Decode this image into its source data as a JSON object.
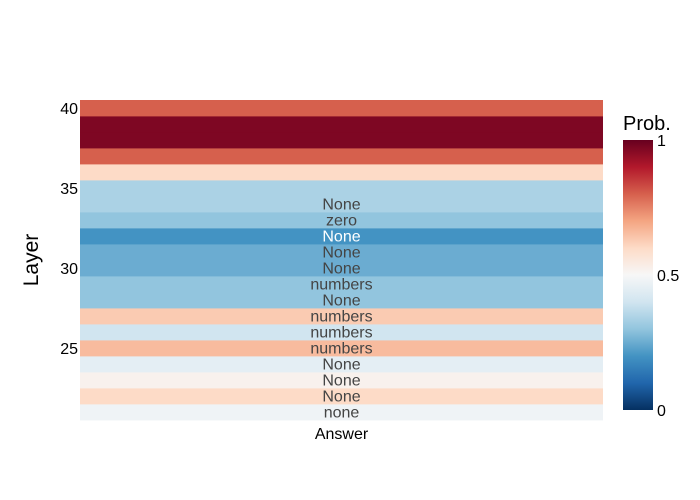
{
  "chart_data": {
    "type": "heatmap",
    "title": "",
    "xlabel": "Answer",
    "ylabel": "Layer",
    "x_categories": [
      "Answer"
    ],
    "y_range": [
      20.5,
      40.5
    ],
    "y_ticks": [
      "25",
      "30",
      "35",
      "40"
    ],
    "colorbar": {
      "title": "Prob.",
      "range": [
        0,
        1
      ],
      "ticks": [
        "0",
        "0.5",
        "1"
      ],
      "colorscale": "RdBu reversed",
      "stops": [
        "#053061",
        "#2166ac",
        "#4393c3",
        "#92c5de",
        "#d1e5f0",
        "#f7f7f7",
        "#fddbc7",
        "#f4a582",
        "#d6604d",
        "#b2182b",
        "#67001f"
      ]
    },
    "cells": [
      {
        "layer": 21,
        "value": 0.48,
        "label": "none"
      },
      {
        "layer": 22,
        "value": 0.6,
        "label": "None"
      },
      {
        "layer": 23,
        "value": 0.52,
        "label": "None"
      },
      {
        "layer": 24,
        "value": 0.45,
        "label": "None"
      },
      {
        "layer": 25,
        "value": 0.66,
        "label": "numbers"
      },
      {
        "layer": 26,
        "value": 0.4,
        "label": "numbers"
      },
      {
        "layer": 27,
        "value": 0.63,
        "label": "numbers"
      },
      {
        "layer": 28,
        "value": 0.3,
        "label": "None"
      },
      {
        "layer": 29,
        "value": 0.3,
        "label": "numbers"
      },
      {
        "layer": 30,
        "value": 0.25,
        "label": "None"
      },
      {
        "layer": 31,
        "value": 0.25,
        "label": "None"
      },
      {
        "layer": 32,
        "value": 0.2,
        "label": "None"
      },
      {
        "layer": 33,
        "value": 0.3,
        "label": "zero"
      },
      {
        "layer": 34,
        "value": 0.34,
        "label": "None"
      },
      {
        "layer": 35,
        "value": 0.34,
        "label": ""
      },
      {
        "layer": 36,
        "value": 0.6,
        "label": ""
      },
      {
        "layer": 37,
        "value": 0.8,
        "label": ""
      },
      {
        "layer": 38,
        "value": 0.97,
        "label": ""
      },
      {
        "layer": 39,
        "value": 0.97,
        "label": ""
      },
      {
        "layer": 40,
        "value": 0.8,
        "label": ""
      }
    ]
  }
}
